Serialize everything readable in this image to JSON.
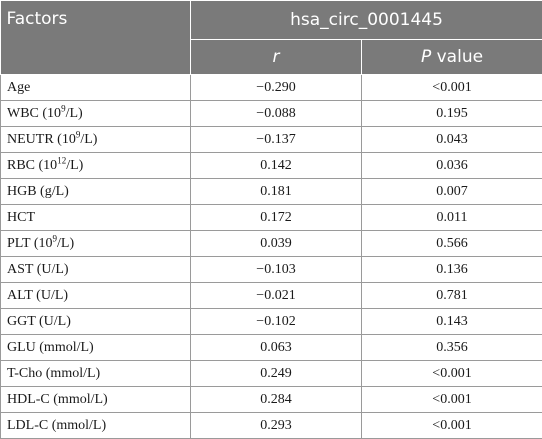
{
  "header": {
    "factors_label": "Factors",
    "group_label": "hsa_circ_0001445",
    "r_label": "r",
    "p_label_italic": "P",
    "p_label_rest": " value"
  },
  "rows": [
    {
      "name_pre": "Age",
      "name_sup": "",
      "name_post": "",
      "r": "−0.290",
      "p": "<0.001"
    },
    {
      "name_pre": "WBC (10",
      "name_sup": "9",
      "name_post": "/L)",
      "r": "−0.088",
      "p": "0.195"
    },
    {
      "name_pre": "NEUTR (10",
      "name_sup": "9",
      "name_post": "/L)",
      "r": "−0.137",
      "p": "0.043"
    },
    {
      "name_pre": "RBC (10",
      "name_sup": "12",
      "name_post": "/L)",
      "r": "0.142",
      "p": "0.036"
    },
    {
      "name_pre": "HGB (g/L)",
      "name_sup": "",
      "name_post": "",
      "r": "0.181",
      "p": "0.007"
    },
    {
      "name_pre": "HCT",
      "name_sup": "",
      "name_post": "",
      "r": "0.172",
      "p": "0.011"
    },
    {
      "name_pre": "PLT (10",
      "name_sup": "9",
      "name_post": "/L)",
      "r": "0.039",
      "p": "0.566"
    },
    {
      "name_pre": "AST (U/L)",
      "name_sup": "",
      "name_post": "",
      "r": "−0.103",
      "p": "0.136"
    },
    {
      "name_pre": "ALT (U/L)",
      "name_sup": "",
      "name_post": "",
      "r": "−0.021",
      "p": "0.781"
    },
    {
      "name_pre": "GGT (U/L)",
      "name_sup": "",
      "name_post": "",
      "r": "−0.102",
      "p": "0.143"
    },
    {
      "name_pre": "GLU (mmol/L)",
      "name_sup": "",
      "name_post": "",
      "r": "0.063",
      "p": "0.356"
    },
    {
      "name_pre": "T-Cho (mmol/L)",
      "name_sup": "",
      "name_post": "",
      "r": "0.249",
      "p": "<0.001"
    },
    {
      "name_pre": "HDL-C (mmol/L)",
      "name_sup": "",
      "name_post": "",
      "r": "0.284",
      "p": "<0.001"
    },
    {
      "name_pre": "LDL-C (mmol/L)",
      "name_sup": "",
      "name_post": "",
      "r": "0.293",
      "p": "<0.001"
    }
  ]
}
